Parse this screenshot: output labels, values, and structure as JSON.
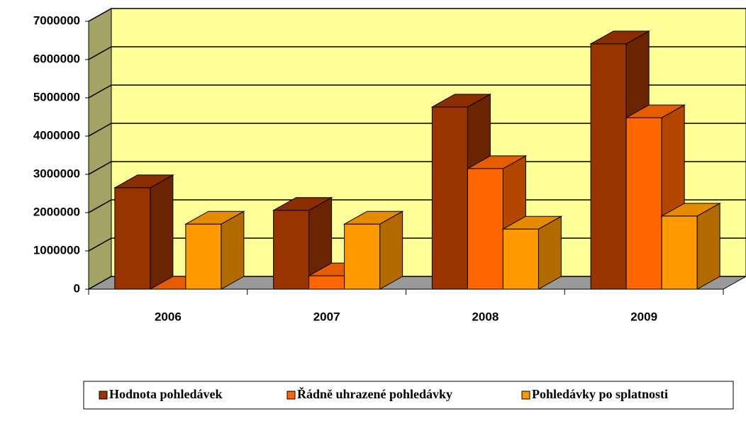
{
  "chart_data": {
    "type": "bar3d",
    "categories": [
      "2006",
      "2007",
      "2008",
      "2009"
    ],
    "series": [
      {
        "name": "Hodnota pohledávek",
        "color": "#993300",
        "values": [
          2650000,
          2060000,
          4760000,
          6410000
        ]
      },
      {
        "name": "Řádně uhrazené pohledávky",
        "color": "#FF6600",
        "values": [
          0,
          350000,
          3150000,
          4480000
        ]
      },
      {
        "name": "Pohledávky po splatnosti",
        "color": "#FF9900",
        "values": [
          1700000,
          1700000,
          1570000,
          1910000
        ]
      }
    ],
    "ylim": [
      0,
      7000000
    ],
    "yticks": [
      0,
      1000000,
      2000000,
      3000000,
      4000000,
      5000000,
      6000000,
      7000000
    ],
    "grid": true,
    "legend": "bottom"
  }
}
